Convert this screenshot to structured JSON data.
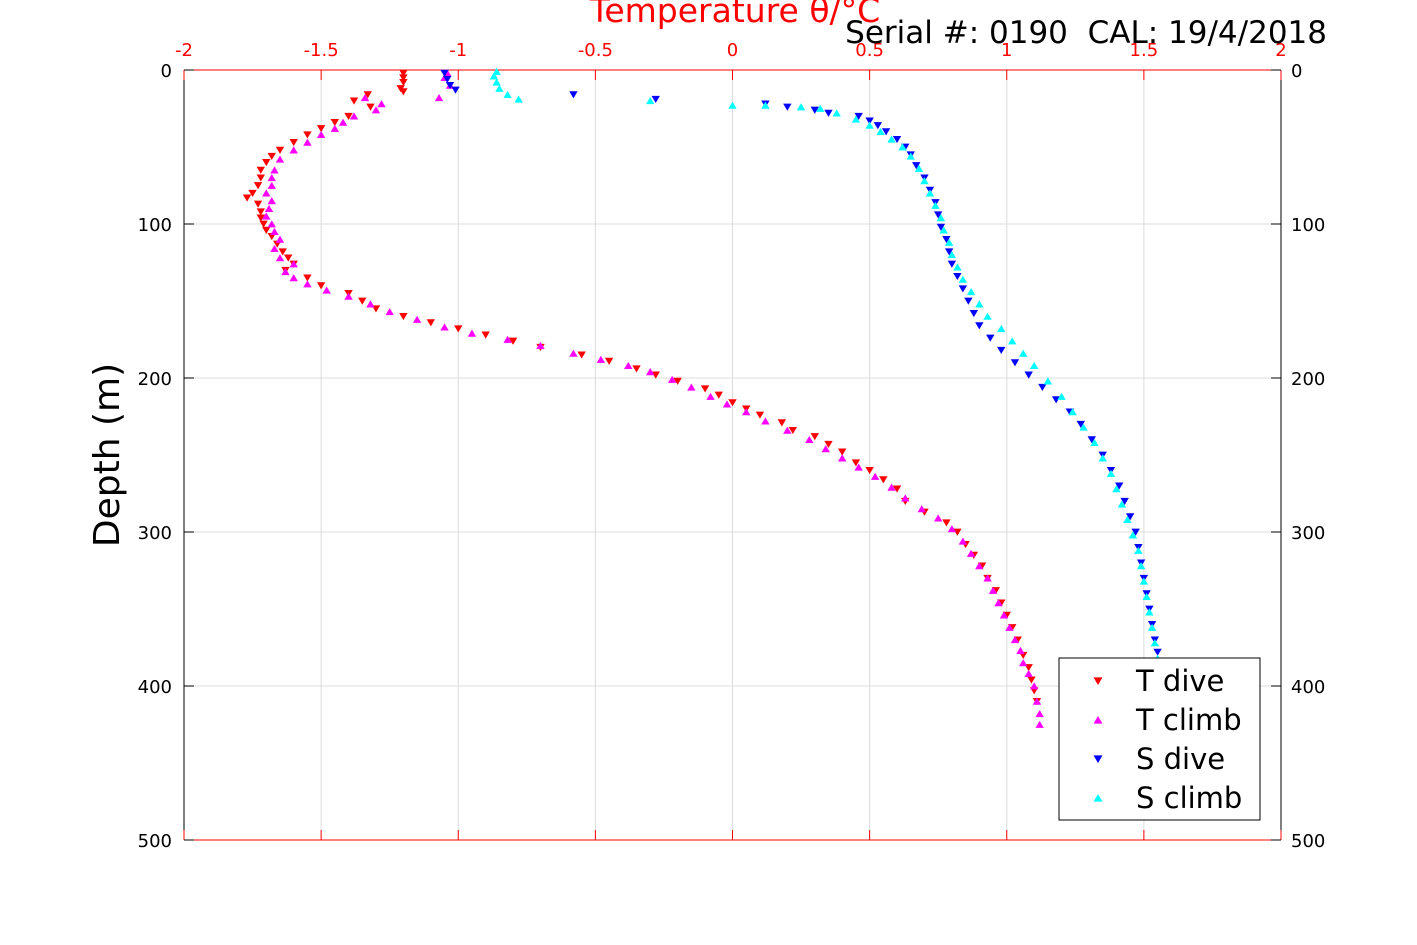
{
  "chart_data": {
    "type": "scatter",
    "title": "Temperature θ/°C",
    "annotation": "Serial #: 0190  CAL: 19/4/2018",
    "ylabel": "Depth (m)",
    "xlim": [
      -2,
      2
    ],
    "ylim": [
      0,
      500
    ],
    "y_reversed": true,
    "grid": true,
    "legend_position": "bottom-right",
    "x_ticks": [
      "-2",
      "-1.5",
      "-1",
      "-0.5",
      "0",
      "0.5",
      "1",
      "1.5",
      "2"
    ],
    "y_ticks": [
      "0",
      "100",
      "200",
      "300",
      "400",
      "500"
    ],
    "colors": {
      "axis_top": "#ff0000",
      "axis_other": "#000000",
      "grid": "#dcdcdc"
    },
    "series": [
      {
        "name": "T dive",
        "marker": "triangle-down",
        "color": "#ff0000",
        "points": [
          [
            -1.2,
            2
          ],
          [
            -1.2,
            5
          ],
          [
            -1.2,
            8
          ],
          [
            -1.21,
            12
          ],
          [
            -1.2,
            14
          ],
          [
            -1.33,
            16
          ],
          [
            -1.38,
            20
          ],
          [
            -1.32,
            24
          ],
          [
            -1.4,
            30
          ],
          [
            -1.45,
            34
          ],
          [
            -1.5,
            38
          ],
          [
            -1.55,
            42
          ],
          [
            -1.6,
            47
          ],
          [
            -1.65,
            52
          ],
          [
            -1.68,
            56
          ],
          [
            -1.7,
            60
          ],
          [
            -1.72,
            65
          ],
          [
            -1.72,
            70
          ],
          [
            -1.73,
            75
          ],
          [
            -1.75,
            80
          ],
          [
            -1.77,
            83
          ],
          [
            -1.73,
            87
          ],
          [
            -1.72,
            92
          ],
          [
            -1.72,
            96
          ],
          [
            -1.71,
            100
          ],
          [
            -1.7,
            104
          ],
          [
            -1.68,
            108
          ],
          [
            -1.66,
            113
          ],
          [
            -1.64,
            118
          ],
          [
            -1.62,
            122
          ],
          [
            -1.6,
            126
          ],
          [
            -1.63,
            130
          ],
          [
            -1.55,
            135
          ],
          [
            -1.5,
            140
          ],
          [
            -1.4,
            145
          ],
          [
            -1.35,
            150
          ],
          [
            -1.3,
            155
          ],
          [
            -1.2,
            160
          ],
          [
            -1.1,
            164
          ],
          [
            -1.0,
            168
          ],
          [
            -0.9,
            172
          ],
          [
            -0.8,
            176
          ],
          [
            -0.7,
            180
          ],
          [
            -0.55,
            185
          ],
          [
            -0.45,
            189
          ],
          [
            -0.35,
            194
          ],
          [
            -0.28,
            198
          ],
          [
            -0.2,
            202
          ],
          [
            -0.1,
            207
          ],
          [
            -0.05,
            211
          ],
          [
            0.0,
            216
          ],
          [
            0.05,
            220
          ],
          [
            0.1,
            224
          ],
          [
            0.18,
            229
          ],
          [
            0.22,
            234
          ],
          [
            0.3,
            238
          ],
          [
            0.35,
            243
          ],
          [
            0.4,
            248
          ],
          [
            0.45,
            255
          ],
          [
            0.5,
            260
          ],
          [
            0.55,
            266
          ],
          [
            0.6,
            272
          ],
          [
            0.63,
            280
          ],
          [
            0.7,
            287
          ],
          [
            0.78,
            294
          ],
          [
            0.82,
            300
          ],
          [
            0.85,
            308
          ],
          [
            0.88,
            315
          ],
          [
            0.91,
            322
          ],
          [
            0.93,
            330
          ],
          [
            0.96,
            338
          ],
          [
            0.98,
            346
          ],
          [
            1.0,
            354
          ],
          [
            1.02,
            362
          ],
          [
            1.04,
            370
          ],
          [
            1.06,
            380
          ],
          [
            1.08,
            388
          ],
          [
            1.09,
            396
          ],
          [
            1.1,
            403
          ],
          [
            1.11,
            410
          ]
        ]
      },
      {
        "name": "T climb",
        "marker": "triangle-up",
        "color": "#ff00ff",
        "points": [
          [
            1.12,
            425
          ],
          [
            1.12,
            418
          ],
          [
            1.11,
            410
          ],
          [
            1.1,
            400
          ],
          [
            1.08,
            392
          ],
          [
            1.06,
            385
          ],
          [
            1.05,
            377
          ],
          [
            1.03,
            370
          ],
          [
            1.01,
            362
          ],
          [
            0.99,
            354
          ],
          [
            0.97,
            346
          ],
          [
            0.95,
            338
          ],
          [
            0.93,
            330
          ],
          [
            0.9,
            322
          ],
          [
            0.87,
            314
          ],
          [
            0.84,
            306
          ],
          [
            0.8,
            298
          ],
          [
            0.75,
            291
          ],
          [
            0.69,
            285
          ],
          [
            0.63,
            278
          ],
          [
            0.58,
            271
          ],
          [
            0.52,
            264
          ],
          [
            0.46,
            258
          ],
          [
            0.4,
            252
          ],
          [
            0.34,
            246
          ],
          [
            0.28,
            240
          ],
          [
            0.2,
            234
          ],
          [
            0.12,
            228
          ],
          [
            0.05,
            222
          ],
          [
            -0.02,
            217
          ],
          [
            -0.08,
            212
          ],
          [
            -0.15,
            206
          ],
          [
            -0.22,
            201
          ],
          [
            -0.3,
            196
          ],
          [
            -0.38,
            192
          ],
          [
            -0.48,
            188
          ],
          [
            -0.58,
            184
          ],
          [
            -0.7,
            179
          ],
          [
            -0.82,
            175
          ],
          [
            -0.95,
            171
          ],
          [
            -1.05,
            167
          ],
          [
            -1.15,
            162
          ],
          [
            -1.25,
            157
          ],
          [
            -1.32,
            152
          ],
          [
            -1.4,
            147
          ],
          [
            -1.48,
            143
          ],
          [
            -1.55,
            139
          ],
          [
            -1.6,
            135
          ],
          [
            -1.63,
            131
          ],
          [
            -1.6,
            126
          ],
          [
            -1.65,
            122
          ],
          [
            -1.67,
            116
          ],
          [
            -1.65,
            110
          ],
          [
            -1.67,
            105
          ],
          [
            -1.68,
            100
          ],
          [
            -1.7,
            95
          ],
          [
            -1.69,
            90
          ],
          [
            -1.68,
            85
          ],
          [
            -1.7,
            80
          ],
          [
            -1.68,
            75
          ],
          [
            -1.68,
            70
          ],
          [
            -1.67,
            65
          ],
          [
            -1.65,
            58
          ],
          [
            -1.6,
            52
          ],
          [
            -1.55,
            47
          ],
          [
            -1.5,
            42
          ],
          [
            -1.45,
            38
          ],
          [
            -1.42,
            34
          ],
          [
            -1.38,
            30
          ],
          [
            -1.3,
            26
          ],
          [
            -1.28,
            22
          ],
          [
            -1.34,
            18
          ],
          [
            -1.07,
            18
          ],
          [
            -1.03,
            10
          ],
          [
            -1.05,
            5
          ],
          [
            -1.04,
            2
          ]
        ]
      },
      {
        "name": "S dive",
        "marker": "triangle-down",
        "color": "#0000ff",
        "points": [
          [
            -1.05,
            2
          ],
          [
            -1.04,
            6
          ],
          [
            -1.03,
            10
          ],
          [
            -1.01,
            13
          ],
          [
            -0.58,
            16
          ],
          [
            -0.28,
            19
          ],
          [
            0.12,
            22
          ],
          [
            0.2,
            24
          ],
          [
            0.3,
            26
          ],
          [
            0.35,
            28
          ],
          [
            0.46,
            30
          ],
          [
            0.5,
            33
          ],
          [
            0.53,
            36
          ],
          [
            0.56,
            40
          ],
          [
            0.6,
            45
          ],
          [
            0.63,
            50
          ],
          [
            0.65,
            55
          ],
          [
            0.67,
            62
          ],
          [
            0.7,
            70
          ],
          [
            0.72,
            78
          ],
          [
            0.74,
            86
          ],
          [
            0.75,
            94
          ],
          [
            0.76,
            102
          ],
          [
            0.78,
            110
          ],
          [
            0.79,
            118
          ],
          [
            0.8,
            126
          ],
          [
            0.82,
            134
          ],
          [
            0.84,
            142
          ],
          [
            0.86,
            150
          ],
          [
            0.88,
            158
          ],
          [
            0.9,
            166
          ],
          [
            0.94,
            174
          ],
          [
            0.98,
            182
          ],
          [
            1.03,
            190
          ],
          [
            1.08,
            198
          ],
          [
            1.13,
            206
          ],
          [
            1.18,
            214
          ],
          [
            1.23,
            222
          ],
          [
            1.27,
            230
          ],
          [
            1.31,
            240
          ],
          [
            1.35,
            250
          ],
          [
            1.38,
            260
          ],
          [
            1.41,
            270
          ],
          [
            1.43,
            280
          ],
          [
            1.45,
            290
          ],
          [
            1.47,
            300
          ],
          [
            1.48,
            310
          ],
          [
            1.49,
            320
          ],
          [
            1.5,
            330
          ],
          [
            1.51,
            340
          ],
          [
            1.52,
            350
          ],
          [
            1.53,
            360
          ],
          [
            1.54,
            370
          ],
          [
            1.55,
            378
          ]
        ]
      },
      {
        "name": "S climb",
        "marker": "triangle-up",
        "color": "#00ffff",
        "points": [
          [
            1.55,
            382
          ],
          [
            1.54,
            372
          ],
          [
            1.53,
            362
          ],
          [
            1.52,
            352
          ],
          [
            1.51,
            342
          ],
          [
            1.5,
            332
          ],
          [
            1.49,
            322
          ],
          [
            1.48,
            312
          ],
          [
            1.46,
            302
          ],
          [
            1.44,
            292
          ],
          [
            1.42,
            282
          ],
          [
            1.4,
            272
          ],
          [
            1.38,
            262
          ],
          [
            1.35,
            252
          ],
          [
            1.32,
            242
          ],
          [
            1.28,
            232
          ],
          [
            1.24,
            222
          ],
          [
            1.2,
            212
          ],
          [
            1.15,
            202
          ],
          [
            1.1,
            192
          ],
          [
            1.06,
            184
          ],
          [
            1.02,
            176
          ],
          [
            0.98,
            168
          ],
          [
            0.93,
            160
          ],
          [
            0.9,
            152
          ],
          [
            0.87,
            144
          ],
          [
            0.84,
            136
          ],
          [
            0.82,
            128
          ],
          [
            0.8,
            120
          ],
          [
            0.79,
            112
          ],
          [
            0.77,
            104
          ],
          [
            0.76,
            96
          ],
          [
            0.74,
            88
          ],
          [
            0.72,
            80
          ],
          [
            0.7,
            72
          ],
          [
            0.68,
            64
          ],
          [
            0.65,
            56
          ],
          [
            0.62,
            50
          ],
          [
            0.58,
            45
          ],
          [
            0.54,
            40
          ],
          [
            0.5,
            36
          ],
          [
            0.45,
            32
          ],
          [
            0.38,
            28
          ],
          [
            0.32,
            25
          ],
          [
            0.25,
            24
          ],
          [
            0.12,
            23
          ],
          [
            0.0,
            23
          ],
          [
            -0.3,
            20
          ],
          [
            -0.78,
            19
          ],
          [
            -0.82,
            16
          ],
          [
            -0.85,
            12
          ],
          [
            -0.86,
            8
          ],
          [
            -0.87,
            4
          ],
          [
            -0.86,
            1
          ]
        ]
      }
    ]
  }
}
